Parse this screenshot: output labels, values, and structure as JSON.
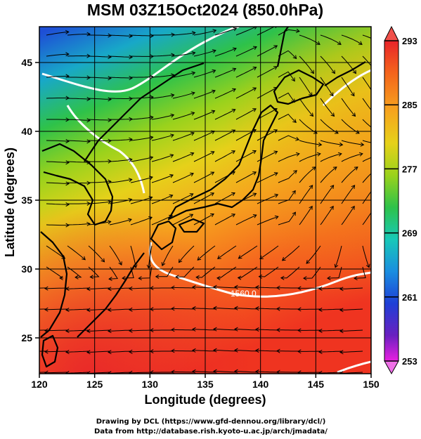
{
  "title": "MSM 03Z15Oct2024 (850.0hPa)",
  "xlabel": "Longitude (degrees)",
  "ylabel": "Latitude  (degrees)",
  "x_ticks": [
    "120",
    "125",
    "130",
    "135",
    "140",
    "145",
    "150"
  ],
  "y_ticks": [
    "25",
    "30",
    "35",
    "40",
    "45"
  ],
  "colorbar": {
    "ticks": [
      "293",
      "285",
      "277",
      "269",
      "261",
      "253"
    ],
    "min": 253,
    "max": 293
  },
  "contour_label": "1560.0",
  "credits": [
    "Drawing by DCL (https://www.gfd-dennou.org/library/dcl/)",
    "Data from http://database.rish.kyoto-u.ac.jp/arch/jmadata/"
  ],
  "chart_data": {
    "type": "heatmap",
    "title": "MSM 03Z15Oct2024 (850.0hPa)",
    "xlabel": "Longitude (degrees)",
    "ylabel": "Latitude  (degrees)",
    "xlim": [
      120,
      150
    ],
    "ylim": [
      22.4,
      47.6
    ],
    "x_ticks": [
      120,
      125,
      130,
      135,
      140,
      145,
      150
    ],
    "y_ticks": [
      25,
      30,
      35,
      40,
      45
    ],
    "grid": true,
    "colorbar_range": [
      253,
      293
    ],
    "colorbar_ticks": [
      293,
      285,
      277,
      269,
      261,
      253
    ]
  }
}
